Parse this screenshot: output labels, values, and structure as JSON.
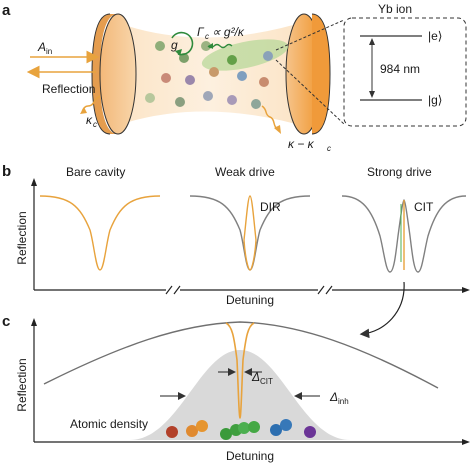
{
  "panel_labels": {
    "a": "a",
    "b": "b",
    "c": "c"
  },
  "panel_a": {
    "input_field": "A",
    "input_sub": "in",
    "reflection_label": "Reflection",
    "kappa_c": "κ",
    "kappa_c_sub": "c",
    "coupling": "g",
    "gamma_prefix": "Γ",
    "gamma_sub": "c",
    "gamma_rel": "∝ g²/κ",
    "loss_label": "κ − κ",
    "loss_sub": "c",
    "ion_title": "Yb ion",
    "excited_state": "|e⟩",
    "ground_state": "|g⟩",
    "wavelength": "984 nm"
  },
  "panel_b": {
    "titles": [
      "Bare cavity",
      "Weak drive",
      "Strong drive"
    ],
    "features": [
      "DIR",
      "CIT"
    ],
    "ylabel": "Reflection",
    "xlabel": "Detuning"
  },
  "panel_c": {
    "ylabel": "Reflection",
    "xlabel": "Detuning",
    "delta_cit": "Δ",
    "delta_cit_sub": "CIT",
    "delta_inh": "Δ",
    "delta_inh_sub": "inh",
    "density_label": "Atomic density"
  },
  "colors": {
    "orange": "#e8a33d",
    "cavity_gray": "#8a8a8a",
    "mirror_orange": "#f0a046",
    "mirror_light": "#f6c895",
    "density_gray": "#d8d8d8",
    "atom_green": "#4caf50",
    "atom_blue": "#2d6fb0",
    "atom_red": "#c0432b",
    "atom_purple": "#7a3fa0",
    "atom_orange": "#e08a30"
  }
}
